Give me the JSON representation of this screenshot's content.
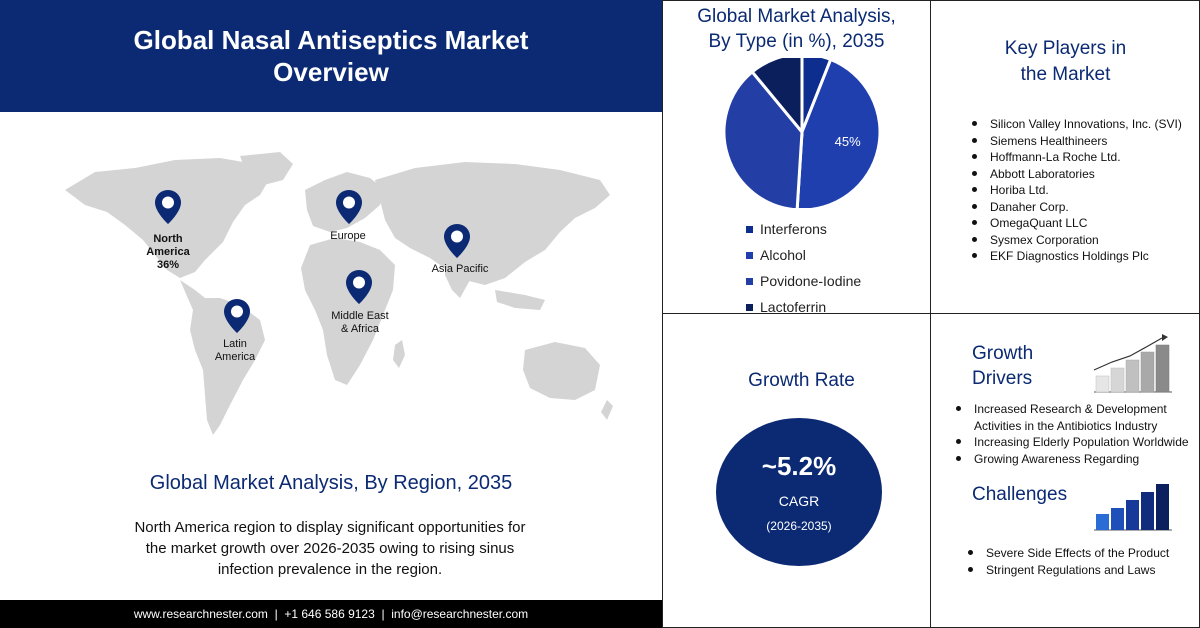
{
  "overview": {
    "title_line1": "Global Nasal Antiseptics Market",
    "title_line2": "Overview"
  },
  "region": {
    "labels": {
      "north_america": [
        "North",
        "America",
        "36%"
      ],
      "europe": "Europe",
      "asia_pacific": "Asia Pacific",
      "middle_east": [
        "Middle East",
        "& Africa"
      ],
      "latin_america": [
        "Latin",
        "America"
      ]
    },
    "heading": "Global Market Analysis, By Region, 2035",
    "text_lines": [
      "North America region to display significant opportunities  for",
      "the market growth over 2026-2035 owing to rising sinus",
      "infection prevalence in the region."
    ]
  },
  "footer": {
    "text": "www.researchnester.com  |  +1 646 586 9123  |  info@researchnester.com"
  },
  "colors": {
    "navy": "#0b2a73",
    "royal": "#1f3fae",
    "dark_navy": "#0a1f5c",
    "light_navy": "#263f9e",
    "map_gray": "#d4d4d4",
    "pin": "#0b2a73"
  },
  "chart_data": {
    "type": "pie",
    "title": "Global Market Analysis, By Type (in %), 2035",
    "title_line1": "Global Market Analysis,",
    "title_line2": "By Type (in %), 2035",
    "series": [
      {
        "name": "Interferons",
        "value": 6,
        "color": "#0d2d8f"
      },
      {
        "name": "Alcohol",
        "value": 45,
        "color": "#1f3fae",
        "label": "45%"
      },
      {
        "name": "Povidone-Iodine",
        "value": 38,
        "color": "#233ea4"
      },
      {
        "name": "Lactoferrin",
        "value": 11,
        "color": "#0a1f5c"
      }
    ],
    "legend_position": "bottom"
  },
  "key_players": {
    "title_line1": "Key Players in",
    "title_line2": "the Market",
    "items": [
      "Silicon Valley Innovations, Inc. (SVI)",
      "Siemens Healthineers",
      "Hoffmann-La Roche Ltd.",
      "Abbott Laboratories",
      "Horiba Ltd.",
      "Danaher Corp.",
      "OmegaQuant LLC",
      "Sysmex Corporation",
      "EKF Diagnostics Holdings Plc"
    ]
  },
  "growth_rate": {
    "title": "Growth Rate",
    "value": "~5.2%",
    "label": "CAGR",
    "period": "(2026-2035)"
  },
  "growth_drivers": {
    "title_line1": "Growth",
    "title_line2": "Drivers",
    "items": [
      "Increased Research & Development Activities in the Antibiotics Industry",
      "Increasing Elderly Population Worldwide",
      "Growing Awareness Regarding"
    ]
  },
  "challenges": {
    "title": "Challenges",
    "items": [
      "Severe Side Effects of the Product",
      "Stringent Regulations and Laws"
    ]
  }
}
